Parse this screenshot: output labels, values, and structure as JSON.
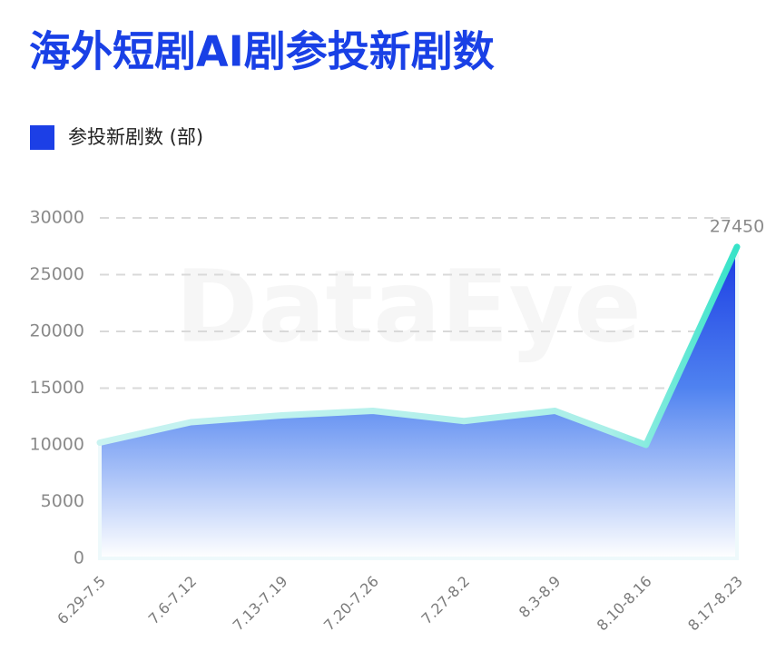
{
  "chart_data": {
    "type": "area",
    "title": "海外短剧AI剧参投新剧数",
    "watermark": "DataEye",
    "categories": [
      "6.29-7.5",
      "7.6-7.12",
      "7.13-7.19",
      "7.20-7.26",
      "7.27-8.2",
      "8.3-8.9",
      "8.10-8.16",
      "8.17-8.23"
    ],
    "series": [
      {
        "name": "参投新剧数 (部)",
        "color": "#1c3fe6",
        "values": [
          10200,
          12000,
          12600,
          13000,
          12100,
          13000,
          10000,
          27450
        ]
      }
    ],
    "data_labels": "last",
    "ylim": [
      0,
      30000
    ],
    "yticks": [
      0,
      5000,
      10000,
      15000,
      20000,
      25000,
      30000
    ],
    "grid": true
  }
}
